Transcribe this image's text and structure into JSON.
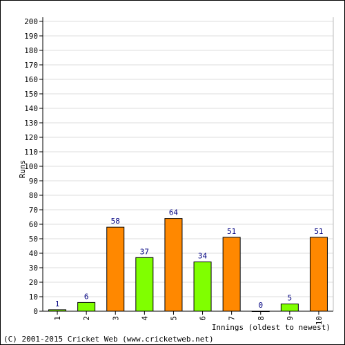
{
  "chart_data": {
    "type": "bar",
    "categories": [
      "1",
      "2",
      "3",
      "4",
      "5",
      "6",
      "7",
      "8",
      "9",
      "10"
    ],
    "values": [
      1,
      6,
      58,
      37,
      64,
      34,
      51,
      0,
      5,
      51
    ],
    "bar_colors": [
      "#80ff00",
      "#80ff00",
      "#ff8800",
      "#80ff00",
      "#ff8800",
      "#80ff00",
      "#ff8800",
      "#80ff00",
      "#80ff00",
      "#ff8800"
    ],
    "data_labels": [
      "1",
      "6",
      "58",
      "37",
      "64",
      "34",
      "51",
      "0",
      "5",
      "51"
    ],
    "ylabel": "Runs",
    "xlabel": "Innings (oldest to newest)",
    "ylim": [
      0,
      200
    ],
    "ytick_step": 10,
    "grid": true,
    "colors": {
      "label": "#000080",
      "grid": "#dddddd",
      "axis": "#000000"
    }
  },
  "footer": {
    "credit": "(C) 2001-2015 Cricket Web (www.cricketweb.net)"
  }
}
